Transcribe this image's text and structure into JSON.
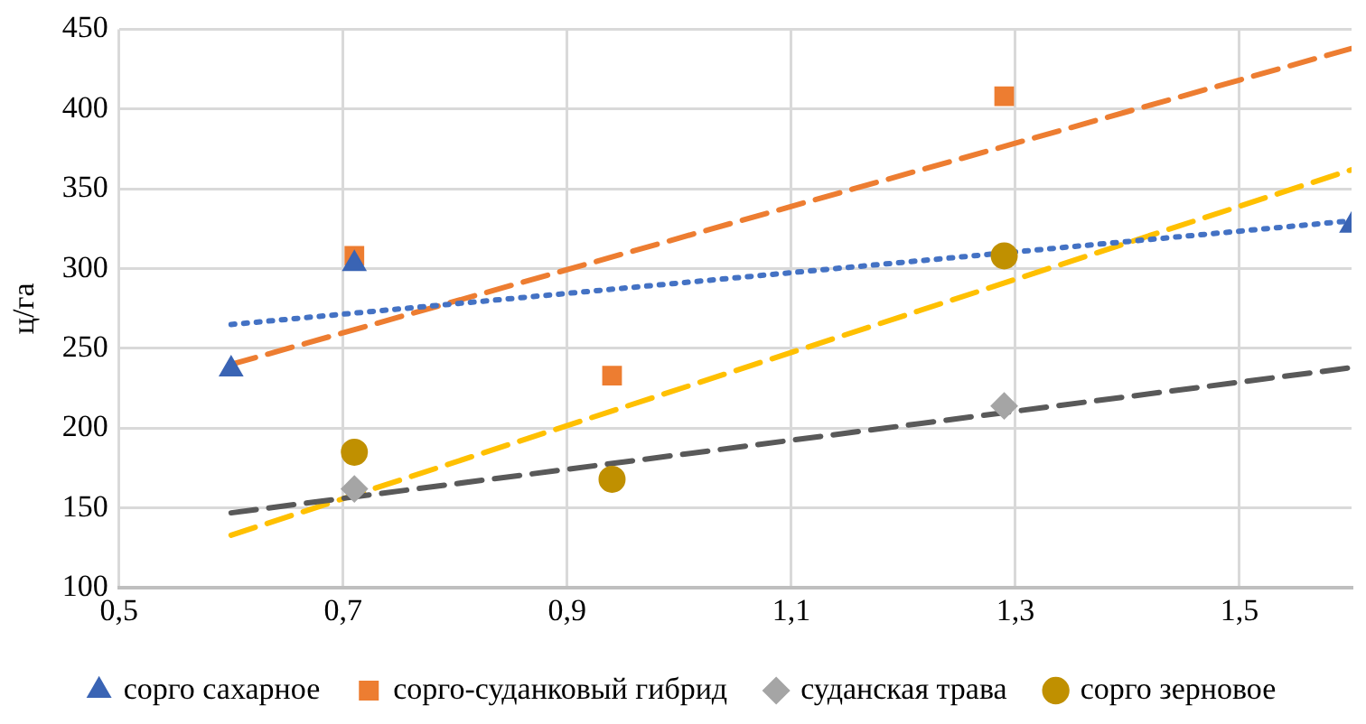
{
  "chart_data": {
    "type": "scatter",
    "ylabel": "ц/га",
    "xlim": [
      0.5,
      1.6
    ],
    "xticks": [
      {
        "value": 0.5,
        "label": "0,5"
      },
      {
        "value": 0.7,
        "label": "0,7"
      },
      {
        "value": 0.9,
        "label": "0,9"
      },
      {
        "value": 1.1,
        "label": "1,1"
      },
      {
        "value": 1.3,
        "label": "1,3"
      },
      {
        "value": 1.5,
        "label": "1,5"
      }
    ],
    "ylim": [
      100,
      450
    ],
    "yticks": [
      100,
      150,
      200,
      250,
      300,
      350,
      400,
      450
    ],
    "grid": true,
    "legend": "bottom",
    "series": [
      {
        "name": "сорго сахарное",
        "color": "#3a64b4",
        "marker": "triangle",
        "x": [
          0.6,
          0.71,
          1.6
        ],
        "values": [
          237,
          303,
          327
        ]
      },
      {
        "name": "сорго-суданковый гибрид",
        "color": "#ed7d31",
        "marker": "square",
        "x": [
          0.71,
          0.94,
          1.29
        ],
        "values": [
          308,
          233,
          408
        ]
      },
      {
        "name": "суданская трава",
        "color": "#a5a5a5",
        "marker": "diamond",
        "x": [
          0.71,
          1.29
        ],
        "values": [
          162,
          214
        ]
      },
      {
        "name": "сорго зерновое",
        "color": "#c09000",
        "marker": "circle",
        "x": [
          0.71,
          0.94,
          1.29
        ],
        "values": [
          185,
          168,
          308
        ]
      },
      {
        "type": "line",
        "color": "#4472c4",
        "line_style": "dotted",
        "x": [
          0.6,
          1.6
        ],
        "values": [
          265,
          330
        ]
      },
      {
        "type": "line",
        "color": "#ed7d31",
        "line_style": "dashed",
        "x": [
          0.6,
          1.6
        ],
        "values": [
          240,
          438
        ]
      },
      {
        "type": "line",
        "color": "#595959",
        "line_style": "dashed",
        "x": [
          0.6,
          1.6
        ],
        "values": [
          147,
          238
        ]
      },
      {
        "type": "line",
        "color": "#ffc000",
        "line_style": "dashed",
        "x": [
          0.6,
          1.6
        ],
        "values": [
          133,
          362
        ]
      }
    ]
  }
}
